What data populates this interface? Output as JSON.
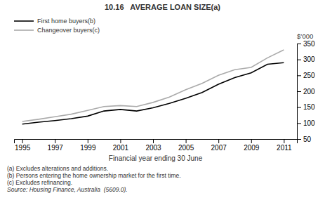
{
  "chart_data": {
    "type": "line",
    "title": "10.16   AVERAGE LOAN SIZE(a)",
    "xlabel": "Financial year ending 30 June",
    "ylabel": "$’000",
    "x": [
      1995,
      1996,
      1997,
      1998,
      1999,
      2000,
      2001,
      2002,
      2003,
      2004,
      2005,
      2006,
      2007,
      2008,
      2009,
      2010,
      2011
    ],
    "series": [
      {
        "name": "First home buyers(b)",
        "color": "#000000",
        "values": [
          97,
          103,
          108,
          114,
          122,
          138,
          143,
          138,
          148,
          162,
          178,
          196,
          222,
          243,
          258,
          285,
          290
        ]
      },
      {
        "name": "Changeover buyers(c)",
        "color": "#aaaaaa",
        "values": [
          105,
          112,
          120,
          128,
          140,
          152,
          155,
          152,
          165,
          182,
          205,
          225,
          250,
          268,
          275,
          305,
          330
        ]
      }
    ],
    "xlim": [
      1994.5,
      2011.8
    ],
    "xticks": [
      1995,
      1997,
      1999,
      2001,
      2003,
      2005,
      2007,
      2009,
      2011
    ],
    "ylim": [
      50,
      350
    ],
    "yticks": [
      50,
      100,
      150,
      200,
      250,
      300,
      350
    ],
    "grid": false,
    "legend": "upper left",
    "annotations": [
      "(a) Excludes alterations and additions.",
      "(b) Persons entering the home ownership market for the first time.",
      "(c) Excludes refinancing."
    ],
    "source": "Source: Housing Finance, Australia  (5609.0)."
  }
}
